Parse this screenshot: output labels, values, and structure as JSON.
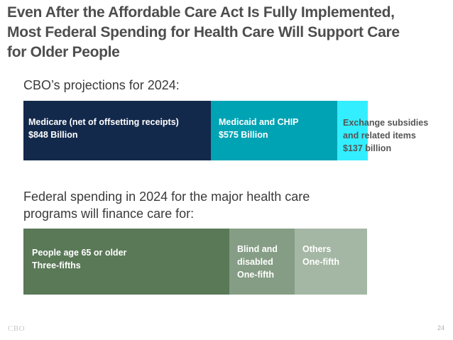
{
  "slide": {
    "title_lines": [
      "Even After the Affordable Care Act Is Fully Implemented,",
      "Most Federal Spending for Health Care Will Support Care",
      "for Older People"
    ],
    "logo": "CBO",
    "page_number": "24"
  },
  "colors": {
    "medicare": "#13294b",
    "medicaid": "#00a3b4",
    "exchange": "#33eeff",
    "older": "#5a7957",
    "blind": "#859d85",
    "others": "#a4b7a4"
  },
  "chart_data": [
    {
      "type": "bar",
      "orientation": "horizontal-stacked",
      "title": "CBO’s projections for 2024:",
      "unit": "billions of dollars",
      "series": [
        {
          "name": "Medicare (net of offsetting receipts)",
          "value_label": "$848 Billion",
          "value": 848,
          "color": "medicare"
        },
        {
          "name": "Medicaid and CHIP",
          "value_label": "$575 Billion",
          "value": 575,
          "color": "medicaid"
        },
        {
          "name_lines": [
            "Exchange subsidies",
            "and related items"
          ],
          "value_label": "$137 billion",
          "value": 137,
          "color": "exchange"
        }
      ]
    },
    {
      "type": "bar",
      "orientation": "horizontal-stacked",
      "title_lines": [
        "Federal spending in 2024 for the major health care",
        "programs will finance care for:"
      ],
      "unit": "share of spending",
      "series": [
        {
          "name": "People age 65 or older",
          "value_label": "Three-fifths",
          "value": 0.6,
          "color": "older"
        },
        {
          "name_lines": [
            "Blind and",
            "disabled"
          ],
          "value_label": "One-fifth",
          "value": 0.19,
          "color": "blind"
        },
        {
          "name": "Others",
          "value_label": "One-fifth",
          "value": 0.21,
          "color": "others"
        }
      ]
    }
  ]
}
